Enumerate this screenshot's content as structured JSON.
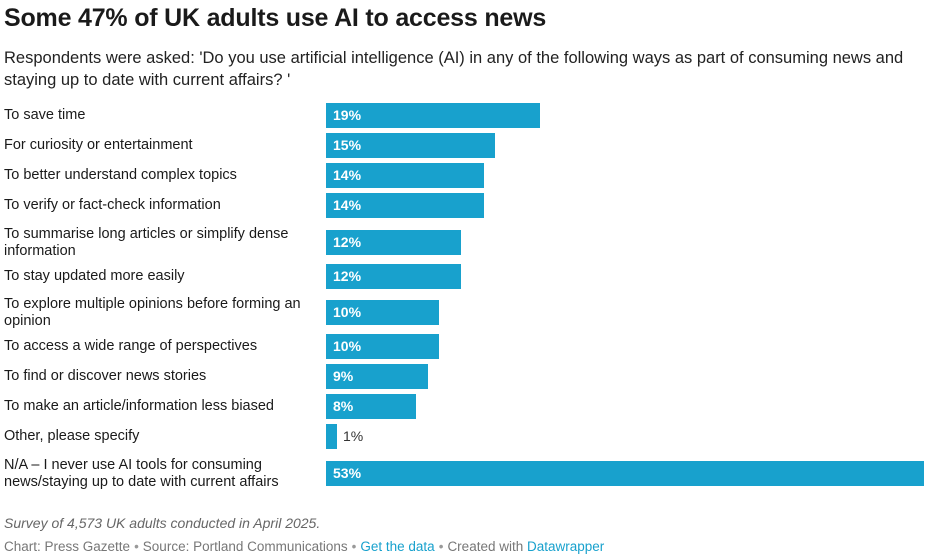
{
  "title": "Some 47% of UK adults use AI to access news",
  "subtitle": "Respondents were asked: 'Do you use artificial intelligence (AI) in any of the following ways as part of consuming news and staying up to date with current affairs? '",
  "notes": "Survey of 4,573 UK adults conducted in April 2025.",
  "footer": {
    "chart_credit": "Chart: Press Gazette",
    "source": "Source: Portland Communications",
    "get_data": "Get the data",
    "created_with": "Created with",
    "tool": "Datawrapper"
  },
  "colors": {
    "bar": "#18a1cd",
    "link": "#18a1cd"
  },
  "chart_data": {
    "type": "bar",
    "orientation": "horizontal",
    "xlim": [
      0,
      53
    ],
    "unit": "%",
    "categories": [
      "To save time",
      "For curiosity or entertainment",
      "To better understand complex topics",
      "To verify or fact-check information",
      "To summarise long articles or simplify dense information",
      "To stay updated more easily",
      "To explore multiple opinions before forming an opinion",
      "To access a wide range of perspectives",
      "To find or discover news stories",
      "To make an article/information less biased",
      "Other, please specify",
      "N/A – I never use AI tools for consuming news/staying up to date with current affairs"
    ],
    "values": [
      19,
      15,
      14,
      14,
      12,
      12,
      10,
      10,
      9,
      8,
      1,
      53
    ],
    "value_labels": [
      "19%",
      "15%",
      "14%",
      "14%",
      "12%",
      "12%",
      "10%",
      "10%",
      "9%",
      "8%",
      "1%",
      "53%"
    ]
  }
}
